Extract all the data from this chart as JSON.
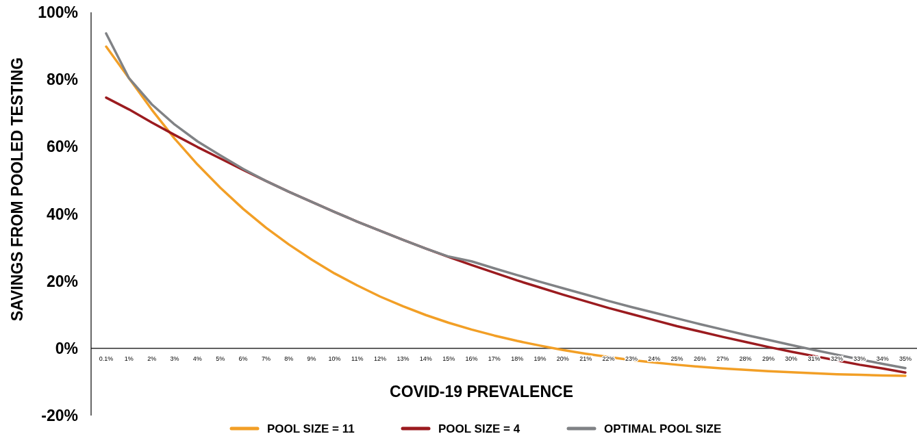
{
  "chart_data": {
    "type": "line",
    "xlabel": "COVID-19 PREVALENCE",
    "ylabel": "SAVINGS FROM POOLED TESTING",
    "categories": [
      "0.1%",
      "1%",
      "2%",
      "3%",
      "4%",
      "5%",
      "6%",
      "7%",
      "8%",
      "9%",
      "10%",
      "11%",
      "12%",
      "13%",
      "14%",
      "15%",
      "16%",
      "17%",
      "18%",
      "19%",
      "20%",
      "21%",
      "22%",
      "23%",
      "24%",
      "25%",
      "26%",
      "27%",
      "28%",
      "29%",
      "30%",
      "31%",
      "32%",
      "33%",
      "34%",
      "35%"
    ],
    "series": [
      {
        "name": "POOL SIZE = 11",
        "color": "#f29f26",
        "values": [
          89.8,
          80.4,
          71.0,
          62.4,
          54.7,
          47.8,
          41.5,
          35.9,
          30.9,
          26.4,
          22.3,
          18.7,
          15.4,
          12.5,
          9.9,
          7.6,
          5.6,
          3.8,
          2.2,
          0.8,
          -0.5,
          -1.6,
          -2.6,
          -3.5,
          -4.2,
          -4.9,
          -5.5,
          -6.0,
          -6.4,
          -6.8,
          -7.1,
          -7.4,
          -7.7,
          -7.9,
          -8.1,
          -8.2
        ]
      },
      {
        "name": "POOL SIZE = 4",
        "color": "#9b1b1f",
        "values": [
          74.6,
          71.1,
          67.2,
          63.5,
          59.9,
          56.5,
          53.1,
          49.8,
          46.6,
          43.6,
          40.6,
          37.7,
          35.0,
          32.3,
          29.7,
          27.2,
          24.8,
          22.5,
          20.2,
          18.1,
          16.0,
          14.0,
          12.0,
          10.2,
          8.4,
          6.6,
          5.0,
          3.4,
          1.9,
          0.4,
          -1.0,
          -2.3,
          -3.6,
          -4.9,
          -6.0,
          -7.2
        ]
      },
      {
        "name": "OPTIMAL POOL SIZE",
        "color": "#808285",
        "values": [
          93.7,
          80.4,
          72.6,
          66.6,
          61.6,
          57.4,
          53.4,
          49.8,
          46.6,
          43.6,
          40.6,
          37.7,
          35.0,
          32.3,
          29.7,
          27.3,
          25.9,
          23.8,
          21.8,
          19.8,
          17.9,
          16.0,
          14.1,
          12.3,
          10.6,
          8.9,
          7.2,
          5.6,
          4.0,
          2.5,
          1.0,
          -0.5,
          -1.9,
          -3.3,
          -4.6,
          -5.9
        ]
      }
    ],
    "ylim": [
      -20,
      100
    ],
    "yticks": [
      {
        "value": -20,
        "label": "-20%"
      },
      {
        "value": 0,
        "label": "0%"
      },
      {
        "value": 20,
        "label": "20%"
      },
      {
        "value": 40,
        "label": "40%"
      },
      {
        "value": 60,
        "label": "60%"
      },
      {
        "value": 80,
        "label": "80%"
      },
      {
        "value": 100,
        "label": "100%"
      }
    ],
    "grid": false,
    "legend": "bottom",
    "marker": "none",
    "line_style": "solid"
  }
}
